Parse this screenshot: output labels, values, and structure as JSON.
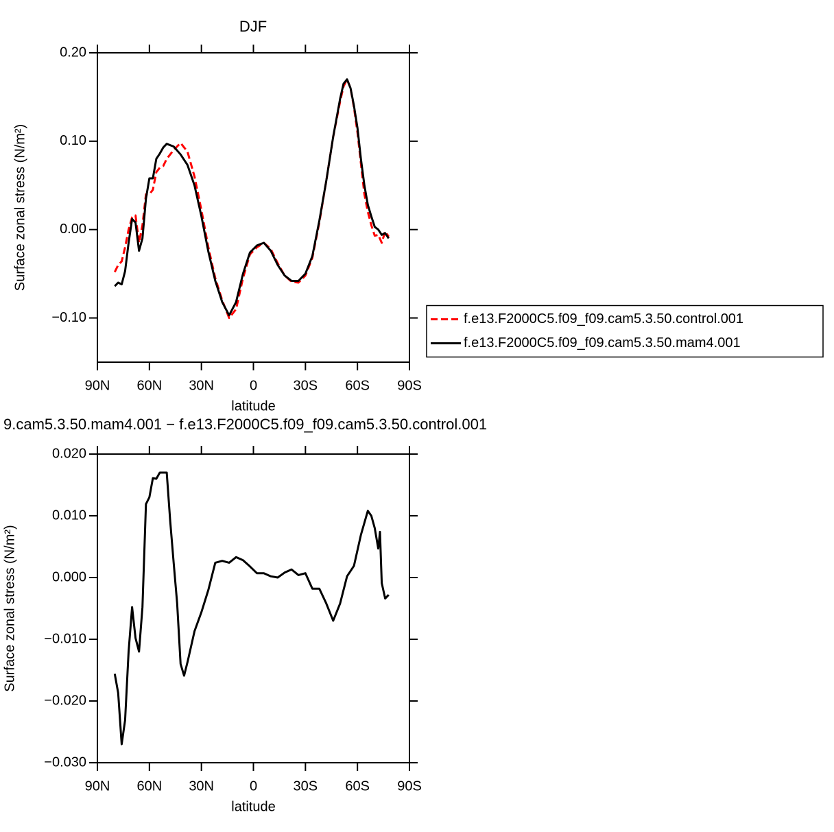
{
  "chart_data": [
    {
      "type": "line",
      "title": "DJF",
      "xlabel": "latitude",
      "ylabel": "Surface zonal stress (N/m²)",
      "x": [
        80,
        78,
        76,
        74,
        72,
        70,
        68,
        66,
        64,
        62,
        60,
        58,
        56,
        54,
        52,
        50,
        46,
        42,
        38,
        34,
        30,
        26,
        22,
        18,
        14,
        10,
        6,
        2,
        -2,
        -6,
        -10,
        -14,
        -18,
        -22,
        -26,
        -30,
        -34,
        -38,
        -42,
        -46,
        -50,
        -52,
        -54,
        -56,
        -58,
        -60,
        -62,
        -64,
        -66,
        -68,
        -70,
        -72,
        -74,
        -76,
        -78
      ],
      "series": [
        {
          "name": "f.e13.F2000C5.f09_f09.cam5.3.50.control.001",
          "color": "#ff0000",
          "dash": true,
          "values": [
            -0.048,
            -0.04,
            -0.036,
            -0.02,
            0.0,
            0.014,
            0.016,
            -0.015,
            0.005,
            0.04,
            0.04,
            0.045,
            0.065,
            0.07,
            0.072,
            0.08,
            0.09,
            0.098,
            0.088,
            0.06,
            0.022,
            -0.02,
            -0.055,
            -0.08,
            -0.1,
            -0.09,
            -0.055,
            -0.028,
            -0.02,
            -0.015,
            -0.022,
            -0.038,
            -0.052,
            -0.059,
            -0.06,
            -0.052,
            -0.032,
            0.008,
            0.055,
            0.105,
            0.145,
            0.162,
            0.17,
            0.16,
            0.138,
            0.11,
            0.075,
            0.04,
            0.02,
            0.005,
            -0.007,
            -0.006,
            -0.015,
            -0.002,
            -0.008
          ]
        },
        {
          "name": "f.e13.F2000C5.f09_f09.cam5.3.50.mam4.001",
          "color": "#000000",
          "dash": false,
          "values": [
            -0.064,
            -0.06,
            -0.062,
            -0.047,
            -0.015,
            0.012,
            0.008,
            -0.024,
            -0.01,
            0.035,
            0.058,
            0.058,
            0.08,
            0.086,
            0.093,
            0.097,
            0.094,
            0.085,
            0.073,
            0.05,
            0.015,
            -0.025,
            -0.058,
            -0.082,
            -0.097,
            -0.082,
            -0.05,
            -0.026,
            -0.018,
            -0.015,
            -0.024,
            -0.04,
            -0.052,
            -0.058,
            -0.058,
            -0.05,
            -0.03,
            0.01,
            0.055,
            0.105,
            0.148,
            0.165,
            0.17,
            0.16,
            0.14,
            0.115,
            0.08,
            0.05,
            0.028,
            0.015,
            0.003,
            0.0,
            -0.006,
            -0.004,
            -0.01
          ]
        }
      ],
      "xlim": [
        90,
        -90
      ],
      "xticks": [
        {
          "value": 90,
          "label": "90N"
        },
        {
          "value": 60,
          "label": "60N"
        },
        {
          "value": 30,
          "label": "30N"
        },
        0,
        {
          "value": -30,
          "label": "30S"
        },
        {
          "value": -60,
          "label": "60S"
        },
        {
          "value": -90,
          "label": "90S"
        }
      ],
      "ylim": [
        -0.15,
        0.2
      ],
      "yticks": [
        {
          "value": -0.1,
          "label": "−0.10"
        },
        {
          "value": 0,
          "label": "0.00"
        },
        {
          "value": 0.1,
          "label": "0.10"
        },
        {
          "value": 0.2,
          "label": "0.20"
        }
      ],
      "legend": "right"
    },
    {
      "type": "line",
      "title": "9.cam5.3.50.mam4.001 − f.e13.F2000C5.f09_f09.cam5.3.50.control.001",
      "xlabel": "latitude",
      "ylabel": "Surface zonal stress (N/m²)",
      "x": [
        80,
        78,
        76,
        74,
        72,
        70,
        68,
        66,
        64,
        62,
        60,
        58,
        56,
        54,
        52,
        50,
        48,
        46,
        44,
        42,
        40,
        38,
        34,
        30,
        26,
        22,
        18,
        14,
        10,
        6,
        2,
        -2,
        -6,
        -10,
        -14,
        -18,
        -22,
        -26,
        -30,
        -34,
        -38,
        -42,
        -46,
        -50,
        -54,
        -58,
        -62,
        -66,
        -68,
        -70,
        -72,
        -73,
        -74,
        -76,
        -78
      ],
      "values": [
        -0.0156,
        -0.0187,
        -0.027,
        -0.0231,
        -0.012,
        -0.0048,
        -0.0098,
        -0.012,
        -0.0048,
        0.0119,
        0.013,
        0.0161,
        0.016,
        0.017,
        0.017,
        0.017,
        0.0091,
        0.0024,
        -0.0042,
        -0.014,
        -0.0159,
        -0.0137,
        -0.0087,
        -0.0056,
        -0.002,
        0.0024,
        0.0027,
        0.0024,
        0.0033,
        0.0028,
        0.0018,
        0.0007,
        0.0007,
        0.0002,
        0.0,
        0.0008,
        0.0013,
        0.0004,
        0.0007,
        -0.0018,
        -0.0018,
        -0.0042,
        -0.007,
        -0.0042,
        0.0002,
        0.0019,
        0.0069,
        0.0108,
        0.01,
        0.008,
        0.0047,
        0.0074,
        -0.0009,
        -0.0034,
        -0.0028
      ],
      "color": "#000000",
      "xlim": [
        90,
        -90
      ],
      "xticks": [
        {
          "value": 90,
          "label": "90N"
        },
        {
          "value": 60,
          "label": "60N"
        },
        {
          "value": 30,
          "label": "30N"
        },
        0,
        {
          "value": -30,
          "label": "30S"
        },
        {
          "value": -60,
          "label": "60S"
        },
        {
          "value": -90,
          "label": "90S"
        }
      ],
      "ylim": [
        -0.03,
        0.02
      ],
      "yticks": [
        {
          "value": -0.03,
          "label": "−0.030"
        },
        {
          "value": -0.02,
          "label": "−0.020"
        },
        {
          "value": -0.01,
          "label": "−0.010"
        },
        {
          "value": 0,
          "label": "0.000"
        },
        {
          "value": 0.01,
          "label": "0.010"
        },
        {
          "value": 0.02,
          "label": "0.020"
        }
      ]
    }
  ]
}
